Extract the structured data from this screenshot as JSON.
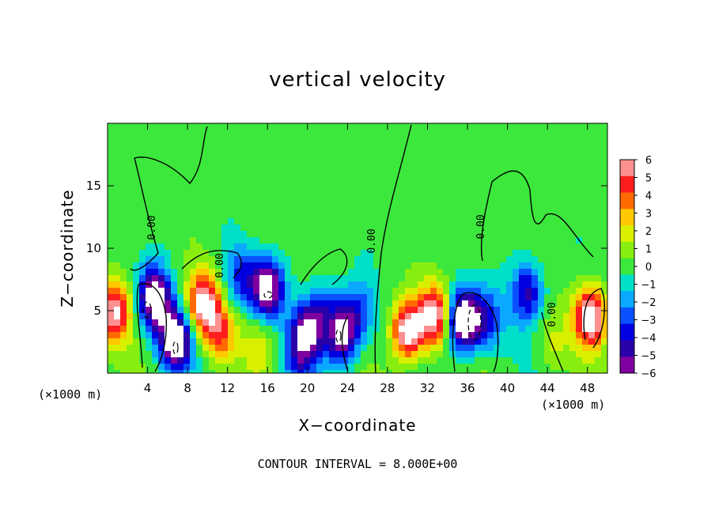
{
  "chart_data": {
    "type": "heatmap",
    "title": "vertical velocity",
    "xlabel": "X−coordinate",
    "ylabel": "Z−coordinate",
    "x_unit_label": "(×1000 m)",
    "x_unit_label_right": "(×1000 m)",
    "footnote": "CONTOUR INTERVAL = 8.000E+00",
    "xlim": [
      0,
      50
    ],
    "ylim": [
      0,
      20
    ],
    "x_ticks": [
      "4",
      "8",
      "12",
      "16",
      "20",
      "24",
      "28",
      "32",
      "36",
      "40",
      "44",
      "48"
    ],
    "y_ticks": [
      "5",
      "10",
      "15"
    ],
    "colorbar": {
      "range": [
        -6,
        6
      ],
      "ticks": [
        "6",
        "5",
        "4",
        "3",
        "2",
        "1",
        "0",
        "−1",
        "−2",
        "−3",
        "−4",
        "−5",
        "−6"
      ]
    },
    "contour_label": "0.00",
    "features": [
      {
        "x": 0.8,
        "z": 5.0,
        "w": 6.5
      },
      {
        "x": 4.7,
        "z": 6.0,
        "w": -8
      },
      {
        "x": 6.8,
        "z": 2.6,
        "w": -8
      },
      {
        "x": 9.6,
        "z": 5.6,
        "w": 7
      },
      {
        "x": 11.3,
        "z": 3.2,
        "w": 4
      },
      {
        "x": 13.3,
        "z": 7.6,
        "w": -3.5
      },
      {
        "x": 16.0,
        "z": 6.8,
        "w": -7.5
      },
      {
        "x": 15.3,
        "z": 2.3,
        "w": 2
      },
      {
        "x": 20.0,
        "z": 3.2,
        "w": -6.5
      },
      {
        "x": 23.5,
        "z": 3.0,
        "w": -7
      },
      {
        "x": 21.6,
        "z": 5.2,
        "w": -3
      },
      {
        "x": 25.0,
        "z": 5.0,
        "w": -3
      },
      {
        "x": 30.0,
        "z": 3.4,
        "w": 8
      },
      {
        "x": 32.7,
        "z": 4.6,
        "w": 7
      },
      {
        "x": 35.5,
        "z": 4.2,
        "w": -9
      },
      {
        "x": 37.8,
        "z": 4.2,
        "w": -4
      },
      {
        "x": 42.0,
        "z": 6.5,
        "w": -5
      },
      {
        "x": 44.5,
        "z": 2.0,
        "w": 1.5
      },
      {
        "x": 48.3,
        "z": 4.5,
        "w": 8
      },
      {
        "x": 19.0,
        "z": 1.0,
        "w": -2.5
      }
    ]
  }
}
